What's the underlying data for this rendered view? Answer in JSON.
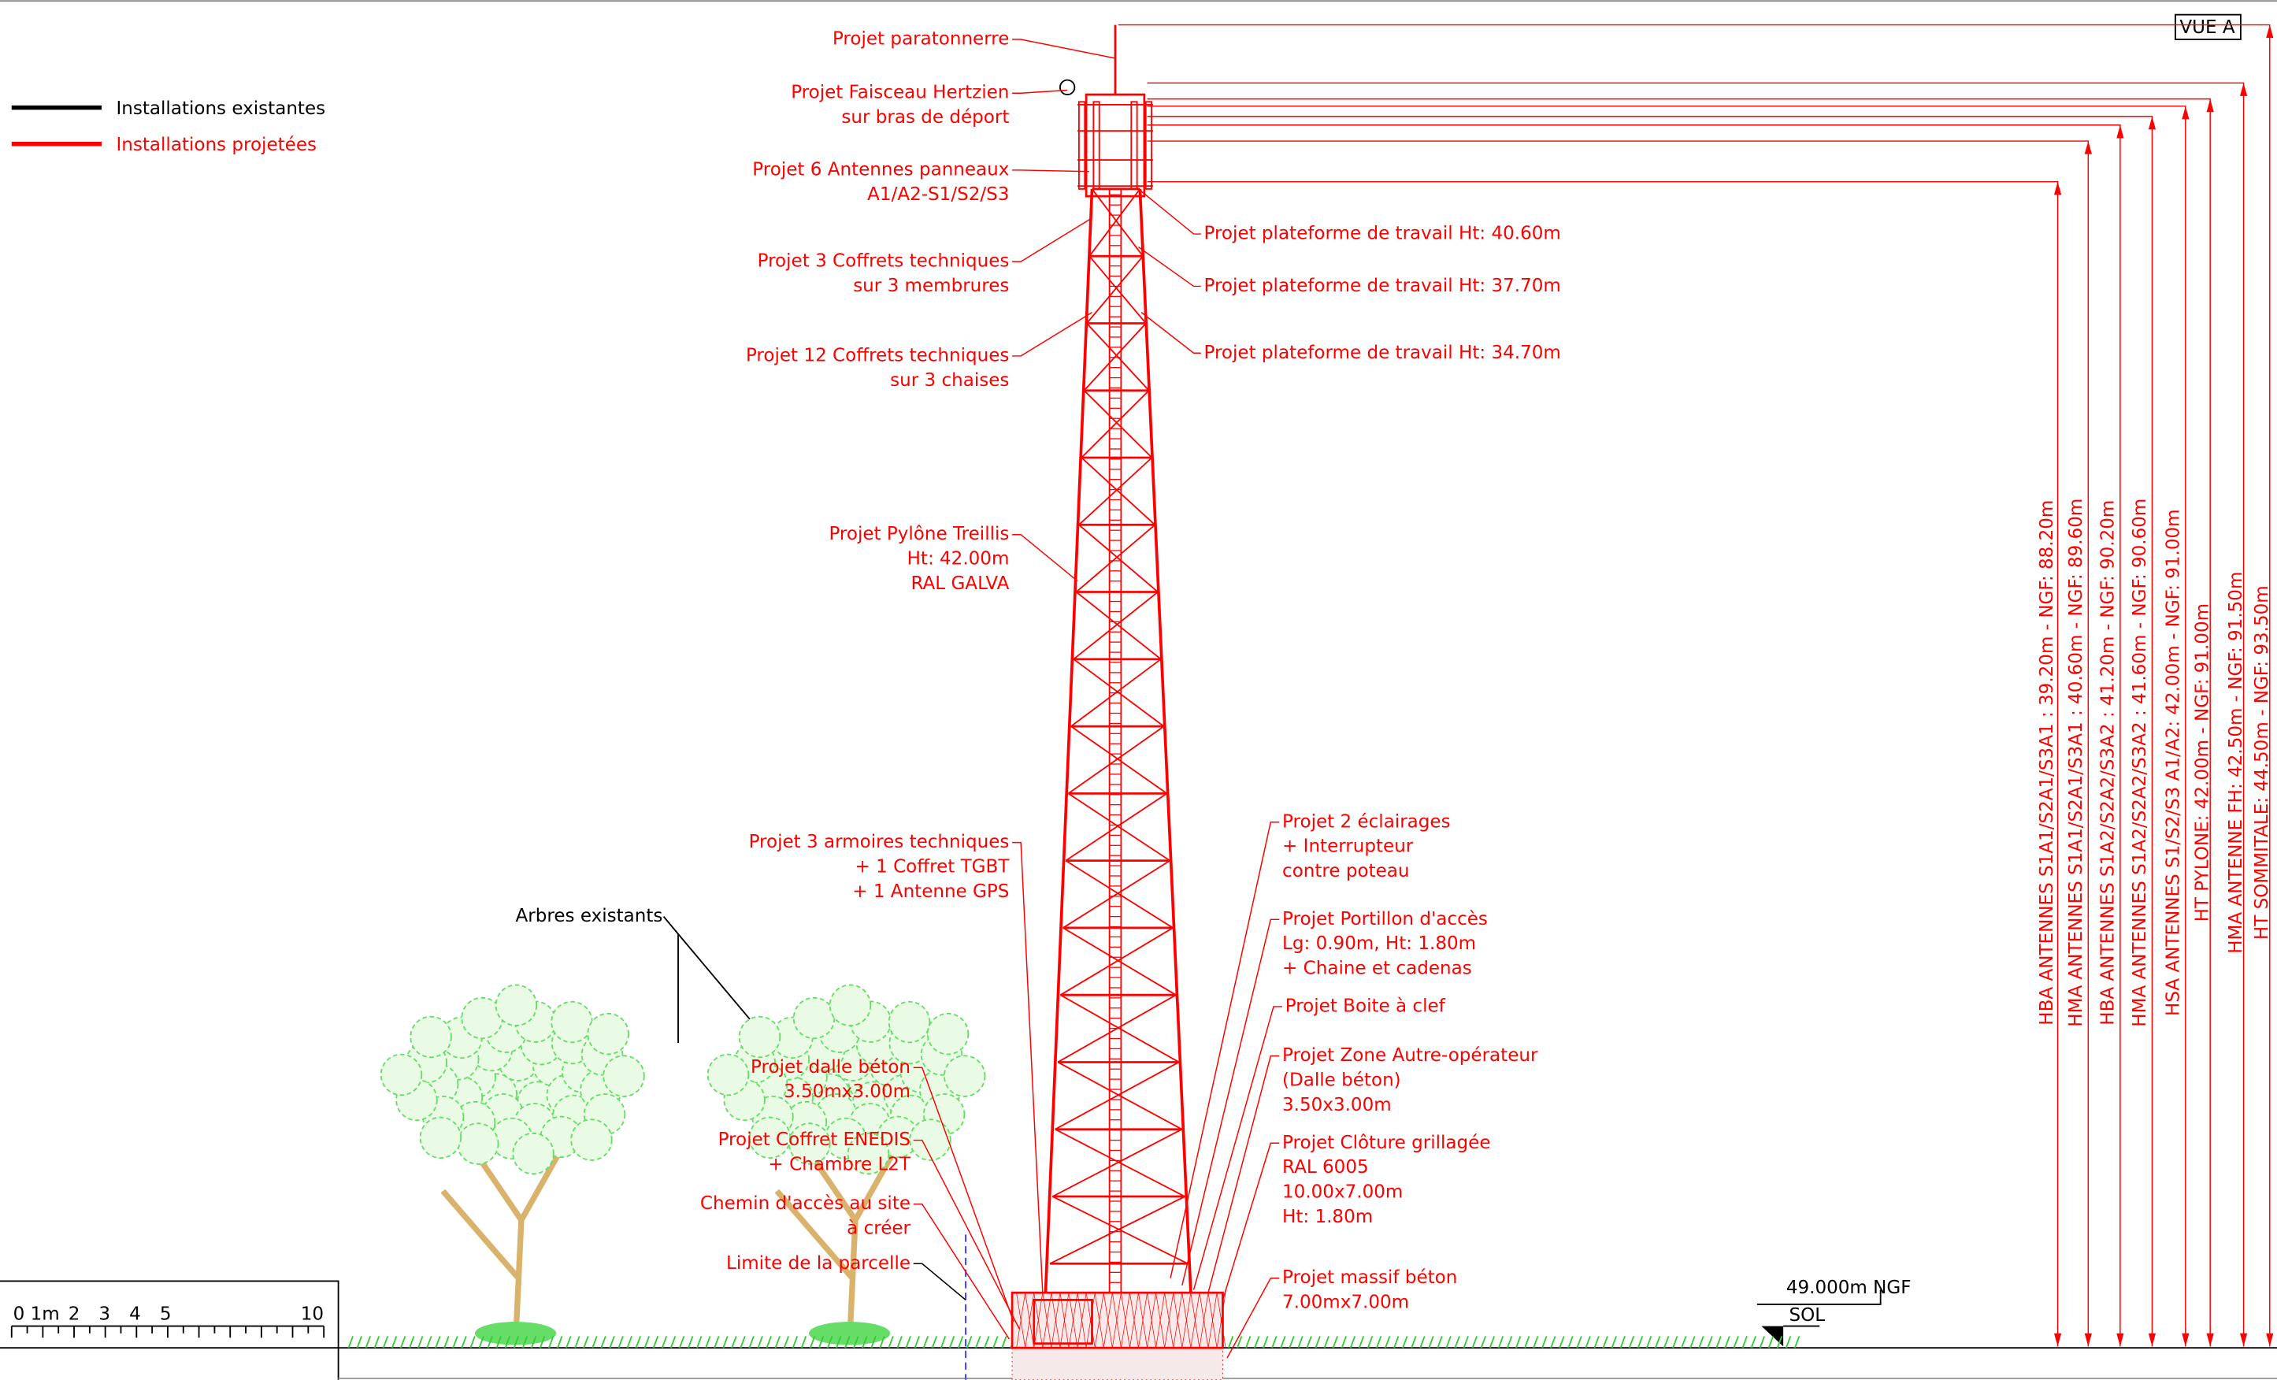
{
  "legend": [
    "Installations existantes",
    "Installations projetées"
  ],
  "view_label": "VUE A",
  "left_labels": [
    [
      "Projet paratonnerre"
    ],
    [
      "Projet Faisceau Hertzien",
      "sur bras de déport"
    ],
    [
      "Projet 6 Antennes panneaux",
      "A1/A2-S1/S2/S3"
    ],
    [
      "Projet 3 Coffrets techniques",
      "sur 3 membrures"
    ],
    [
      "Projet 12 Coffrets techniques",
      "sur 3 chaises"
    ],
    [
      "Projet Pylône Treillis",
      "Ht: 42.00m",
      "RAL GALVA"
    ],
    [
      "Projet 3 armoires techniques",
      "+ 1 Coffret TGBT",
      "+ 1 Antenne GPS"
    ],
    [
      "Projet dalle béton",
      "3.50mx3.00m"
    ],
    [
      "Projet Coffret ENEDIS",
      "+ Chambre L2T"
    ],
    [
      "Chemin d'accès au site",
      "à créer"
    ],
    [
      "Limite de la parcelle"
    ]
  ],
  "trees_label": "Arbres existants",
  "platform_labels": [
    "Projet plateforme de travail Ht: 40.60m",
    "Projet plateforme de travail Ht: 37.70m",
    "Projet plateforme de travail Ht: 34.70m"
  ],
  "right_labels": [
    [
      "Projet 2 éclairages",
      "+ Interrupteur",
      "contre poteau"
    ],
    [
      "Projet Portillon d'accès",
      "Lg: 0.90m, Ht: 1.80m",
      "+ Chaine et cadenas"
    ],
    [
      "Projet Boite à clef"
    ],
    [
      "Projet Zone Autre-opérateur",
      "(Dalle béton)",
      "3.50x3.00m"
    ],
    [
      "Projet Clôture grillagée",
      "RAL 6005",
      "10.00x7.00m",
      "Ht: 1.80m"
    ],
    [
      "Projet massif béton",
      "7.00mx7.00m"
    ]
  ],
  "ground": {
    "ngf": "49.000m NGF",
    "sol": "SOL"
  },
  "height_dimensions": [
    "HBA ANTENNES S1A1/S2A1/S3A1 : 39.20m - NGF: 88.20m",
    "HMA ANTENNES S1A1/S2A1/S3A1 : 40.60m - NGF: 89.60m",
    "HBA ANTENNES S1A2/S2A2/S3A2 : 41.20m - NGF: 90.20m",
    "HMA ANTENNES S1A2/S2A2/S3A2 : 41.60m - NGF: 90.60m",
    "HSA ANTENNES S1/S2/S3 A1/A2: 42.00m - NGF: 91.00m",
    "HT PYLONE: 42.00m - NGF: 91.00m",
    "HMA ANTENNE FH: 42.50m - NGF: 91.50m",
    "HT SOMMITALE: 44.50m - NGF: 93.50m"
  ],
  "scale_bar": [
    "0",
    "1m",
    "2",
    "3",
    "4",
    "5",
    "10"
  ]
}
